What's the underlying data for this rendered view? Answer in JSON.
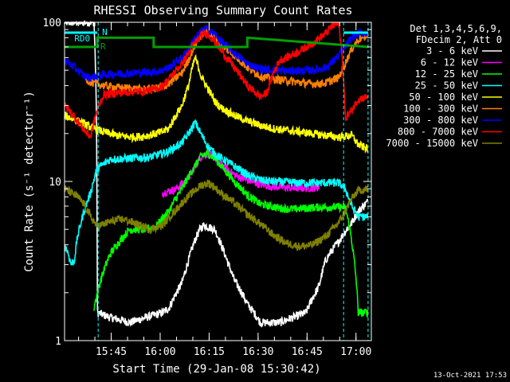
{
  "chart_data": {
    "type": "line",
    "title": "RHESSI Observing Summary Count Rates",
    "xlabel": "Start Time (29-Jan-08 15:30:42)",
    "ylabel": "Count Rate (s⁻¹ detector⁻¹)",
    "yscale": "log",
    "ylim": [
      1,
      100
    ],
    "xlim_minutes": [
      0,
      94
    ],
    "x_ticks": [
      {
        "label": "15:45",
        "min": 14.3
      },
      {
        "label": "16:00",
        "min": 29.3
      },
      {
        "label": "16:15",
        "min": 44.3
      },
      {
        "label": "16:30",
        "min": 59.3
      },
      {
        "label": "16:45",
        "min": 74.3
      },
      {
        "label": "17:00",
        "min": 89.3
      }
    ],
    "y_ticks": [
      {
        "label": "1",
        "value": 1
      },
      {
        "label": "10",
        "value": 10
      },
      {
        "label": "100",
        "value": 100
      }
    ],
    "legend": {
      "position": "right",
      "header": [
        "Det 1,3,4,5,6,9,",
        "FDecim 2, Att 0"
      ]
    },
    "annotations": [
      {
        "label": "RD0",
        "color": "#00ffff"
      },
      {
        "label": "N",
        "color": "#00ffff"
      },
      {
        "label": "R",
        "color": "#00a000"
      }
    ],
    "series": [
      {
        "name": "3 - 6 keV",
        "color": "#ffffff",
        "x": [
          0,
          6,
          9,
          10,
          14,
          20,
          30,
          32,
          36,
          38,
          40,
          41.5,
          42.5,
          44,
          46,
          48,
          50,
          52,
          56,
          60,
          62,
          64,
          66,
          70,
          74,
          78,
          80,
          84,
          88,
          90,
          93
        ],
        "y": [
          100,
          100,
          100,
          1.5,
          1.4,
          1.3,
          1.5,
          1.6,
          2.3,
          3.2,
          4.3,
          5.0,
          5.3,
          5.2,
          5.0,
          4.0,
          3.1,
          2.4,
          1.7,
          1.3,
          1.3,
          1.3,
          1.3,
          1.4,
          1.5,
          2.2,
          3.2,
          4.2,
          5.5,
          6.5,
          7.5
        ]
      },
      {
        "name": "6 - 12 keV",
        "color": "#ff00ff",
        "x": [
          30,
          34,
          38,
          40,
          42,
          44,
          46,
          48,
          52,
          56,
          60,
          64,
          70,
          74,
          78
        ],
        "y": [
          8.5,
          8.9,
          10.5,
          12.5,
          14.5,
          15.0,
          14.2,
          12.8,
          11.0,
          10.2,
          9.6,
          9.3,
          9.1,
          9.1,
          9.2
        ]
      },
      {
        "name": "12 - 25 keV",
        "color": "#00ff00",
        "x": [
          9,
          14,
          20,
          24,
          28,
          32,
          36,
          40,
          42,
          44,
          46,
          48,
          52,
          56,
          60,
          66,
          70,
          74,
          78,
          82,
          86,
          90,
          93
        ],
        "y": [
          1.6,
          3.5,
          5.0,
          5.0,
          5.2,
          6.5,
          9.0,
          12.5,
          14.5,
          15.0,
          14.0,
          12.5,
          10.0,
          8.2,
          7.2,
          6.8,
          6.7,
          6.8,
          6.9,
          6.9,
          6.9,
          1.5,
          1.5
        ]
      },
      {
        "name": "25 - 50 keV",
        "color": "#00ffff",
        "x": [
          0,
          1,
          2,
          3,
          4,
          6,
          8,
          10,
          14,
          20,
          26,
          28,
          30,
          32,
          36,
          38,
          40,
          42,
          44,
          46,
          48,
          52,
          56,
          60,
          64,
          68,
          72,
          76,
          80,
          84,
          86,
          88,
          90,
          93
        ],
        "y": [
          4.0,
          3.6,
          3.0,
          3.2,
          4.5,
          6.5,
          8.5,
          12.0,
          13.8,
          14.0,
          14.2,
          14.6,
          15.0,
          15.5,
          17.5,
          20.0,
          23.5,
          19.5,
          16.5,
          15.0,
          14.0,
          12.5,
          11.0,
          10.2,
          10.0,
          9.9,
          9.8,
          9.8,
          9.8,
          9.8,
          9.0,
          7.0,
          6.0,
          6.0
        ]
      },
      {
        "name": "50 - 100 keV",
        "color": "#ffff00",
        "x": [
          0,
          4,
          8,
          12,
          16,
          20,
          24,
          28,
          30,
          32,
          36,
          38,
          40,
          42,
          44,
          46,
          48,
          52,
          56,
          60,
          64,
          68,
          72,
          76,
          80,
          84,
          88,
          90,
          93
        ],
        "y": [
          26.0,
          24.0,
          22.0,
          20.5,
          19.5,
          19.0,
          19.2,
          20.0,
          20.5,
          21.5,
          30.0,
          40.0,
          60.0,
          45.0,
          38.0,
          32.0,
          29.0,
          26.0,
          24.0,
          22.5,
          21.5,
          21.0,
          20.5,
          20.0,
          19.5,
          19.0,
          19.5,
          17.0,
          16.0
        ]
      },
      {
        "name": "100 - 300 keV",
        "color": "#ff8000",
        "x": [
          6,
          8,
          12,
          16,
          20,
          24,
          28,
          30,
          32,
          36,
          38,
          40,
          42,
          43,
          44,
          46,
          48,
          52,
          56,
          60,
          64,
          68,
          72,
          76,
          80,
          84,
          86,
          88,
          90,
          93
        ],
        "y": [
          45.0,
          42.0,
          40.0,
          39.0,
          38.5,
          38.0,
          38.5,
          39.5,
          41.0,
          48.0,
          58.0,
          72.0,
          85.0,
          88.0,
          87.0,
          80.0,
          72.0,
          62.0,
          52.0,
          46.0,
          44.0,
          43.0,
          42.0,
          41.0,
          41.5,
          45.0,
          55.0,
          68.0,
          78.0,
          83.0
        ]
      },
      {
        "name": "300 - 800 keV",
        "color": "#0000ff",
        "x": [
          0,
          2,
          4,
          6,
          8,
          10,
          12,
          16,
          20,
          24,
          28,
          30,
          32,
          36,
          38,
          40,
          42,
          43,
          44,
          46,
          48,
          52,
          56,
          60,
          64,
          68,
          72,
          76,
          80,
          82,
          84,
          86,
          88,
          90,
          93
        ],
        "y": [
          58.0,
          54.0,
          50.0,
          46.0,
          45.0,
          46.0,
          47.0,
          47.5,
          48.0,
          48.5,
          49.0,
          50.0,
          52.0,
          60.0,
          68.0,
          80.0,
          88.0,
          91.0,
          90.0,
          84.0,
          76.0,
          64.0,
          55.0,
          51.0,
          50.0,
          49.5,
          49.5,
          50.0,
          52.0,
          56.0,
          62.0,
          70.0,
          80.0,
          85.0,
          86.0
        ]
      },
      {
        "name": "800 - 7000 keV",
        "color": "#ff0000",
        "x": [
          0,
          2,
          4,
          6,
          8,
          10,
          12,
          16,
          20,
          24,
          28,
          30,
          32,
          36,
          38,
          40,
          42,
          43,
          44,
          46,
          48,
          52,
          56,
          60,
          62,
          64,
          66,
          68,
          72,
          76,
          80,
          82,
          84,
          86,
          88,
          90,
          93
        ],
        "y": [
          30.0,
          27.0,
          24.0,
          21.0,
          19.0,
          28.0,
          35.0,
          36.0,
          36.5,
          37.0,
          38.0,
          40.0,
          44.0,
          55.0,
          64.0,
          75.0,
          82.0,
          86.0,
          84.0,
          76.0,
          66.0,
          52.0,
          40.0,
          34.0,
          36.0,
          48.0,
          58.0,
          60.0,
          66.0,
          74.0,
          85.0,
          95.0,
          98.0,
          25.0,
          28.0,
          33.0,
          34.0
        ]
      },
      {
        "name": "7000 - 15000 keV",
        "color": "#808000",
        "x": [
          0,
          2,
          4,
          6,
          8,
          10,
          14,
          18,
          22,
          26,
          30,
          34,
          38,
          40,
          42,
          44,
          46,
          48,
          52,
          56,
          60,
          64,
          68,
          72,
          76,
          80,
          84,
          86,
          88,
          90,
          93
        ],
        "y": [
          9.0,
          8.5,
          8.0,
          7.2,
          6.0,
          5.2,
          5.6,
          5.8,
          5.4,
          5.0,
          5.3,
          6.6,
          8.1,
          8.8,
          9.5,
          9.8,
          9.2,
          8.4,
          7.3,
          6.2,
          5.4,
          4.6,
          4.1,
          3.9,
          4.0,
          4.5,
          5.5,
          6.5,
          7.8,
          8.8,
          9.0
        ]
      },
      {
        "name": "RHESSI status",
        "color": "#00a000",
        "x": [
          0,
          10,
          10,
          27.3,
          27.3,
          56,
          56,
          93
        ],
        "y": [
          70,
          70,
          80,
          80,
          70,
          70,
          80,
          70
        ]
      }
    ],
    "timestamp": "13-Oct-2021 17:53"
  }
}
